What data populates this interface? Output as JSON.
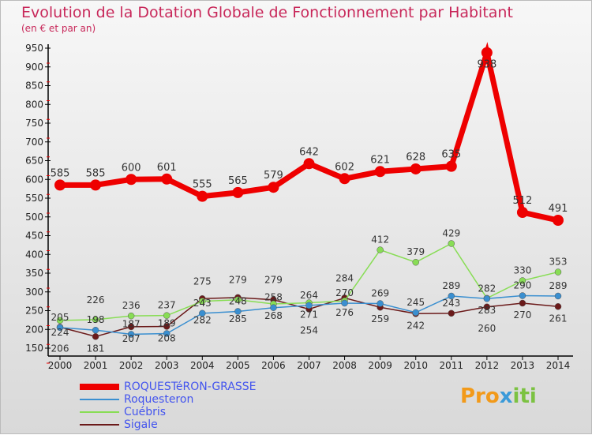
{
  "chart_data": {
    "type": "line",
    "title": "Evolution de la Dotation Globale de Fonctionnement par Habitant",
    "subtitle": "(en € et par an)",
    "x": [
      "2000",
      "2001",
      "2002",
      "2003",
      "2004",
      "2005",
      "2006",
      "2007",
      "2008",
      "2009",
      "2010",
      "2011",
      "2012",
      "2013",
      "2014"
    ],
    "ylim": [
      150,
      950
    ],
    "yticks": [
      150,
      200,
      250,
      300,
      350,
      400,
      450,
      500,
      550,
      600,
      650,
      700,
      750,
      800,
      850,
      900,
      950
    ],
    "series": [
      {
        "name": "ROQUESTéRON-GRASSE",
        "color": "#ee0000",
        "values": [
          585,
          585,
          600,
          601,
          555,
          565,
          579,
          642,
          602,
          621,
          628,
          635,
          938,
          512,
          491
        ]
      },
      {
        "name": "Roquesteron",
        "color": "#3a8fd0",
        "values": [
          205,
          198,
          187,
          189,
          243,
          248,
          258,
          264,
          270,
          269,
          245,
          289,
          282,
          290,
          289
        ]
      },
      {
        "name": "Cuébris",
        "color": "#88dd55",
        "values": [
          224,
          226,
          236,
          237,
          275,
          279,
          268,
          271,
          276,
          412,
          379,
          429,
          283,
          330,
          353
        ]
      },
      {
        "name": "Sigale",
        "color": "#6b1a1a",
        "values": [
          206,
          181,
          207,
          208,
          282,
          285,
          279,
          254,
          284,
          259,
          242,
          243,
          260,
          270,
          261
        ]
      }
    ]
  },
  "logo": "Proxiti"
}
